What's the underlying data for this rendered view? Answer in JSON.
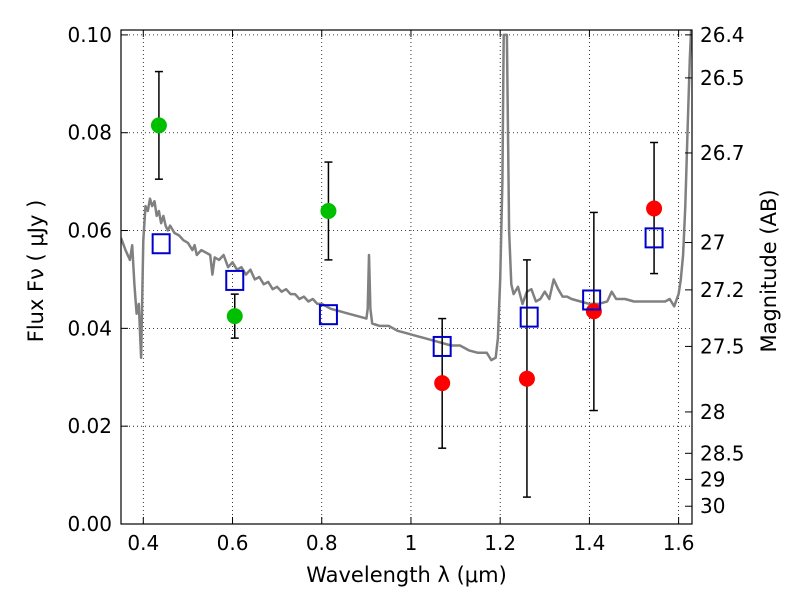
{
  "chart_data": {
    "type": "scatter",
    "xlabel": "Wavelength  λ (μm)",
    "ylabel": "Flux  Fν  ( μJy )",
    "ylabel_right": "Magnitude (AB)",
    "xlim": [
      0.35,
      1.63
    ],
    "ylim": [
      0.0,
      0.101
    ],
    "grid": true,
    "x_ticks": [
      {
        "value": 0.4,
        "label": "0.4"
      },
      {
        "value": 0.6,
        "label": "0.6"
      },
      {
        "value": 0.8,
        "label": "0.8"
      },
      {
        "value": 1.0,
        "label": "1"
      },
      {
        "value": 1.2,
        "label": "1.2"
      },
      {
        "value": 1.4,
        "label": "1.4"
      },
      {
        "value": 1.6,
        "label": "1.6"
      }
    ],
    "y_ticks": [
      {
        "value": 0.0,
        "label": "0.00"
      },
      {
        "value": 0.02,
        "label": "0.02"
      },
      {
        "value": 0.04,
        "label": "0.04"
      },
      {
        "value": 0.06,
        "label": "0.06"
      },
      {
        "value": 0.08,
        "label": "0.08"
      },
      {
        "value": 0.1,
        "label": "0.10"
      }
    ],
    "right_ticks": [
      {
        "value": 26.4,
        "label": "26.4"
      },
      {
        "value": 26.5,
        "label": "26.5"
      },
      {
        "value": 26.7,
        "label": "26.7"
      },
      {
        "value": 27.0,
        "label": "27"
      },
      {
        "value": 27.2,
        "label": "27.2"
      },
      {
        "value": 27.5,
        "label": "27.5"
      },
      {
        "value": 28.0,
        "label": "28"
      },
      {
        "value": 28.5,
        "label": "28.5"
      },
      {
        "value": 29.0,
        "label": "29"
      },
      {
        "value": 30.0,
        "label": "30"
      }
    ],
    "series": [
      {
        "type": "line",
        "color": "#808080",
        "points": [
          [
            0.35,
            0.0585
          ],
          [
            0.36,
            0.056
          ],
          [
            0.37,
            0.054
          ],
          [
            0.375,
            0.057
          ],
          [
            0.38,
            0.049
          ],
          [
            0.385,
            0.043
          ],
          [
            0.39,
            0.045
          ],
          [
            0.395,
            0.034
          ],
          [
            0.4,
            0.058
          ],
          [
            0.405,
            0.065
          ],
          [
            0.41,
            0.064
          ],
          [
            0.415,
            0.0665
          ],
          [
            0.42,
            0.065
          ],
          [
            0.425,
            0.066
          ],
          [
            0.43,
            0.063
          ],
          [
            0.435,
            0.064
          ],
          [
            0.44,
            0.0615
          ],
          [
            0.445,
            0.063
          ],
          [
            0.45,
            0.061
          ],
          [
            0.455,
            0.06
          ],
          [
            0.46,
            0.061
          ],
          [
            0.47,
            0.0595
          ],
          [
            0.48,
            0.059
          ],
          [
            0.49,
            0.058
          ],
          [
            0.5,
            0.0575
          ],
          [
            0.51,
            0.056
          ],
          [
            0.515,
            0.057
          ],
          [
            0.52,
            0.055
          ],
          [
            0.53,
            0.056
          ],
          [
            0.54,
            0.0555
          ],
          [
            0.55,
            0.055
          ],
          [
            0.555,
            0.051
          ],
          [
            0.56,
            0.0545
          ],
          [
            0.57,
            0.054
          ],
          [
            0.58,
            0.055
          ],
          [
            0.59,
            0.0525
          ],
          [
            0.6,
            0.0535
          ],
          [
            0.61,
            0.052
          ],
          [
            0.62,
            0.0525
          ],
          [
            0.63,
            0.051
          ],
          [
            0.64,
            0.052
          ],
          [
            0.65,
            0.05
          ],
          [
            0.66,
            0.0505
          ],
          [
            0.67,
            0.049
          ],
          [
            0.68,
            0.0495
          ],
          [
            0.69,
            0.048
          ],
          [
            0.7,
            0.0485
          ],
          [
            0.71,
            0.0475
          ],
          [
            0.72,
            0.048
          ],
          [
            0.73,
            0.047
          ],
          [
            0.74,
            0.047
          ],
          [
            0.75,
            0.046
          ],
          [
            0.76,
            0.0465
          ],
          [
            0.77,
            0.0455
          ],
          [
            0.78,
            0.046
          ],
          [
            0.79,
            0.045
          ],
          [
            0.8,
            0.045
          ],
          [
            0.82,
            0.044
          ],
          [
            0.84,
            0.0435
          ],
          [
            0.86,
            0.043
          ],
          [
            0.88,
            0.0425
          ],
          [
            0.9,
            0.042
          ],
          [
            0.903,
            0.044
          ],
          [
            0.906,
            0.055
          ],
          [
            0.909,
            0.044
          ],
          [
            0.913,
            0.041
          ],
          [
            0.93,
            0.0405
          ],
          [
            0.95,
            0.0405
          ],
          [
            0.97,
            0.0395
          ],
          [
            0.99,
            0.039
          ],
          [
            1.01,
            0.0385
          ],
          [
            1.03,
            0.038
          ],
          [
            1.05,
            0.0375
          ],
          [
            1.07,
            0.037
          ],
          [
            1.09,
            0.0365
          ],
          [
            1.11,
            0.0365
          ],
          [
            1.13,
            0.0355
          ],
          [
            1.15,
            0.035
          ],
          [
            1.17,
            0.035
          ],
          [
            1.18,
            0.0335
          ],
          [
            1.19,
            0.034
          ],
          [
            1.195,
            0.038
          ],
          [
            1.2,
            0.05
          ],
          [
            1.205,
            0.07
          ],
          [
            1.208,
            0.1
          ],
          [
            1.215,
            0.1
          ],
          [
            1.22,
            0.06
          ],
          [
            1.225,
            0.049
          ],
          [
            1.23,
            0.047
          ],
          [
            1.24,
            0.0485
          ],
          [
            1.25,
            0.045
          ],
          [
            1.26,
            0.0475
          ],
          [
            1.27,
            0.048
          ],
          [
            1.28,
            0.0455
          ],
          [
            1.29,
            0.046
          ],
          [
            1.3,
            0.0475
          ],
          [
            1.31,
            0.046
          ],
          [
            1.32,
            0.05
          ],
          [
            1.33,
            0.048
          ],
          [
            1.34,
            0.0465
          ],
          [
            1.35,
            0.0465
          ],
          [
            1.36,
            0.046
          ],
          [
            1.38,
            0.0455
          ],
          [
            1.4,
            0.045
          ],
          [
            1.42,
            0.045
          ],
          [
            1.44,
            0.0455
          ],
          [
            1.45,
            0.0475
          ],
          [
            1.46,
            0.046
          ],
          [
            1.48,
            0.046
          ],
          [
            1.5,
            0.0455
          ],
          [
            1.52,
            0.0455
          ],
          [
            1.54,
            0.0455
          ],
          [
            1.56,
            0.0455
          ],
          [
            1.57,
            0.0455
          ],
          [
            1.58,
            0.046
          ],
          [
            1.59,
            0.0445
          ],
          [
            1.6,
            0.047
          ],
          [
            1.605,
            0.05
          ],
          [
            1.61,
            0.055
          ],
          [
            1.615,
            0.065
          ],
          [
            1.62,
            0.08
          ],
          [
            1.625,
            0.095
          ],
          [
            1.628,
            0.101
          ]
        ]
      },
      {
        "type": "scatter",
        "marker": "circle",
        "color": "#00bf00",
        "points": [
          {
            "x": 0.435,
            "y": 0.0815,
            "err": 0.011
          },
          {
            "x": 0.605,
            "y": 0.0425,
            "err": 0.0045
          },
          {
            "x": 0.815,
            "y": 0.064,
            "err": 0.01
          }
        ]
      },
      {
        "type": "scatter",
        "marker": "circle",
        "color": "#ff0000",
        "points": [
          {
            "x": 1.07,
            "y": 0.0288,
            "err_low": 0.0133,
            "err_high": 0.0132
          },
          {
            "x": 1.26,
            "y": 0.0297,
            "err_low": 0.0242,
            "err_high": 0.0243
          },
          {
            "x": 1.41,
            "y": 0.0435,
            "err_low": 0.0203,
            "err_high": 0.0202
          },
          {
            "x": 1.545,
            "y": 0.0645,
            "err_low": 0.0133,
            "err_high": 0.0135
          }
        ]
      },
      {
        "type": "scatter",
        "marker": "square-open",
        "color": "#0000cc",
        "points": [
          {
            "x": 0.44,
            "y": 0.0573
          },
          {
            "x": 0.605,
            "y": 0.0498
          },
          {
            "x": 0.815,
            "y": 0.0428
          },
          {
            "x": 1.07,
            "y": 0.0363
          },
          {
            "x": 1.265,
            "y": 0.0423
          },
          {
            "x": 1.405,
            "y": 0.0458
          },
          {
            "x": 1.545,
            "y": 0.0585
          }
        ]
      }
    ]
  }
}
